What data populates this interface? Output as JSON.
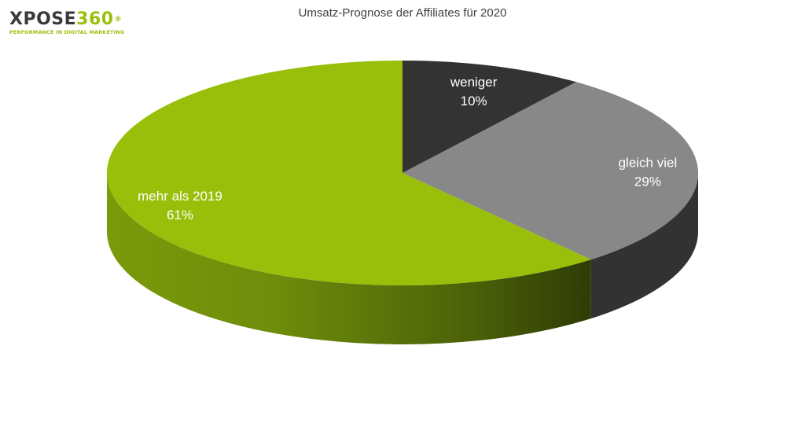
{
  "logo": {
    "text_dark": "XPOSE",
    "text_green": "360",
    "reg": "®",
    "tagline": "PERFORMANCE IN DIGITAL MARKETING"
  },
  "colors": {
    "logo_dark": "#3a3a3a",
    "logo_green": "#9bbf0d"
  },
  "chart_data": {
    "type": "pie",
    "style": "3d",
    "title": "Umsatz-Prognose der Affiliates für 2020",
    "slices": [
      {
        "label": "weniger",
        "value": 10,
        "value_label": "10%",
        "color": "#333333",
        "label_color": "#ffffff"
      },
      {
        "label": "gleich viel",
        "value": 29,
        "value_label": "29%",
        "color": "#888888",
        "label_color": "#ffffff"
      },
      {
        "label": "mehr als 2019",
        "value": 61,
        "value_label": "61%",
        "color": "#99bf0a",
        "label_color": "#ffffff"
      }
    ],
    "legend": "none",
    "data_labels": "inside"
  }
}
